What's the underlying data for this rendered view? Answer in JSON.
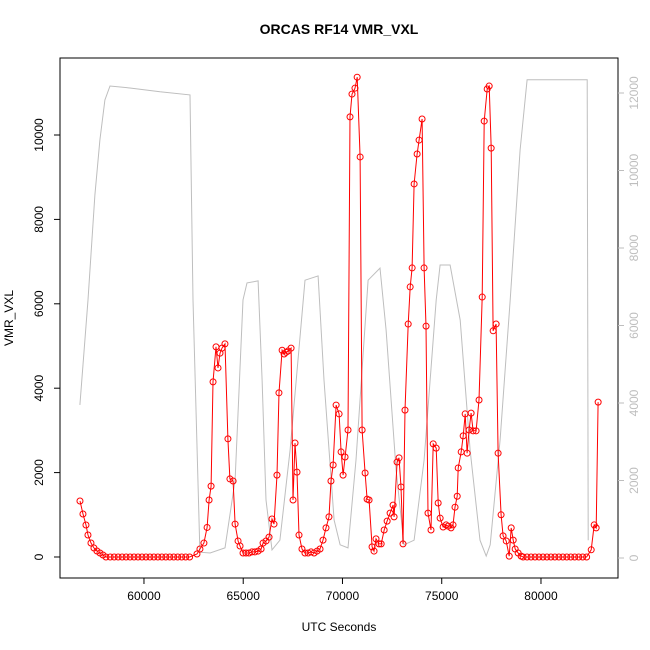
{
  "chart_data": {
    "type": "line",
    "title": "ORCAS RF14 VMR_VXL",
    "x_label": "UTC Seconds",
    "y_label": "VMR_VXL",
    "xlim": [
      55770,
      83880
    ],
    "ylim": [
      -498,
      11825
    ],
    "y2lim": [
      -516,
      12903
    ],
    "xticks": [
      60000,
      65000,
      70000,
      75000,
      80000
    ],
    "yticks": [
      0,
      2000,
      4000,
      6000,
      8000,
      10000
    ],
    "y2ticks": [
      0,
      2000,
      4000,
      6000,
      8000,
      10000,
      12000
    ],
    "y2_color": "#bebebe",
    "series": [
      {
        "color": "#ff0000",
        "markers": true,
        "x": [
          56776,
          56927,
          57078,
          57179,
          57330,
          57481,
          57632,
          57783,
          57935,
          58086,
          58300,
          58500,
          58700,
          58900,
          59100,
          59300,
          59500,
          59700,
          59900,
          60100,
          60300,
          60500,
          60700,
          60900,
          61100,
          61300,
          61500,
          61700,
          61900,
          62100,
          62300,
          62670,
          62820,
          63020,
          63180,
          63280,
          63380,
          63480,
          63630,
          63730,
          63830,
          63930,
          64080,
          64230,
          64330,
          64490,
          64590,
          64740,
          64840,
          64990,
          65140,
          65290,
          65440,
          65590,
          65750,
          65900,
          66000,
          66150,
          66300,
          66450,
          66550,
          66700,
          66800,
          66960,
          67060,
          67160,
          67260,
          67410,
          67510,
          67610,
          67710,
          67810,
          67960,
          68110,
          68270,
          68420,
          68570,
          68720,
          68870,
          69020,
          69170,
          69320,
          69420,
          69530,
          69680,
          69830,
          69930,
          70030,
          70130,
          70280,
          70380,
          70480,
          70630,
          70740,
          70890,
          70990,
          71140,
          71240,
          71340,
          71490,
          71590,
          71690,
          71840,
          71950,
          72100,
          72250,
          72400,
          72550,
          72600,
          72750,
          72850,
          72950,
          73050,
          73150,
          73310,
          73410,
          73510,
          73610,
          73760,
          73860,
          74010,
          74110,
          74210,
          74310,
          74460,
          74570,
          74720,
          74820,
          74920,
          75070,
          75220,
          75320,
          75470,
          75570,
          75670,
          75780,
          75830,
          75980,
          76080,
          76180,
          76280,
          76380,
          76480,
          76580,
          76730,
          76880,
          77040,
          77140,
          77290,
          77390,
          77490,
          77590,
          77740,
          77840,
          77990,
          78090,
          78250,
          78400,
          78500,
          78600,
          78700,
          78850,
          79000,
          79100,
          79300,
          79500,
          79700,
          79900,
          80100,
          80300,
          80500,
          80700,
          80900,
          81100,
          81300,
          81500,
          81700,
          81900,
          82100,
          82300,
          82530,
          82680,
          82780,
          82880
        ],
        "values": [
          1327,
          1019,
          758,
          521,
          332,
          213,
          142,
          95,
          47,
          0,
          0,
          0,
          0,
          0,
          0,
          0,
          0,
          0,
          0,
          0,
          0,
          0,
          0,
          0,
          0,
          0,
          0,
          0,
          0,
          0,
          0,
          71,
          190,
          330,
          700,
          1350,
          1680,
          4150,
          4980,
          4480,
          4830,
          4950,
          5050,
          2800,
          1850,
          1800,
          780,
          380,
          260,
          95,
          95,
          95,
          120,
          120,
          140,
          190,
          330,
          380,
          470,
          900,
          780,
          1940,
          3890,
          4900,
          4810,
          4850,
          4880,
          4950,
          1350,
          2700,
          2010,
          520,
          190,
          95,
          95,
          120,
          95,
          140,
          190,
          400,
          690,
          950,
          1800,
          2180,
          3600,
          3390,
          2490,
          1940,
          2370,
          3010,
          10430,
          10970,
          11110,
          11370,
          9480,
          3010,
          1990,
          1370,
          1350,
          240,
          140,
          430,
          310,
          310,
          640,
          850,
          1040,
          1230,
          950,
          2250,
          2350,
          1660,
          310,
          3480,
          5520,
          6400,
          6850,
          8840,
          9550,
          9880,
          10380,
          6850,
          5470,
          1040,
          640,
          2680,
          2580,
          1280,
          920,
          710,
          760,
          730,
          690,
          760,
          1180,
          1440,
          2110,
          2490,
          2870,
          3390,
          2460,
          3010,
          3410,
          2990,
          2990,
          3720,
          6160,
          10330,
          11090,
          11160,
          9690,
          5360,
          5520,
          2460,
          1000,
          500,
          380,
          20,
          690,
          400,
          190,
          95,
          20,
          0,
          0,
          0,
          0,
          0,
          0,
          0,
          0,
          0,
          0,
          0,
          0,
          0,
          0,
          0,
          0,
          0,
          170,
          760,
          690,
          3670
        ]
      },
      {
        "color": "#bebebe",
        "axis": "y2",
        "markers": false,
        "x": [
          56775,
          57180,
          57530,
          57780,
          58030,
          58290,
          59290,
          60810,
          62320,
          62470,
          62820,
          63330,
          64080,
          64590,
          64990,
          65190,
          65750,
          65950,
          66150,
          66450,
          66850,
          67360,
          68110,
          68770,
          69070,
          69580,
          69880,
          70280,
          70680,
          71290,
          71890,
          72200,
          72700,
          73100,
          73610,
          74110,
          74720,
          74920,
          75420,
          75930,
          76430,
          76930,
          77240,
          77440,
          77940,
          78450,
          78950,
          79300,
          80970,
          82330,
          82380
        ],
        "values": [
          3950,
          6660,
          9370,
          10790,
          11820,
          12180,
          12130,
          12030,
          11950,
          6660,
          150,
          130,
          260,
          2010,
          6660,
          7100,
          7150,
          4590,
          1500,
          210,
          460,
          2790,
          7170,
          7280,
          4590,
          980,
          340,
          260,
          2530,
          7170,
          7480,
          5880,
          2270,
          340,
          460,
          2530,
          6660,
          7560,
          7560,
          6140,
          2790,
          460,
          50,
          340,
          3050,
          6660,
          10530,
          12340,
          12340,
          12340,
          460
        ]
      }
    ]
  }
}
